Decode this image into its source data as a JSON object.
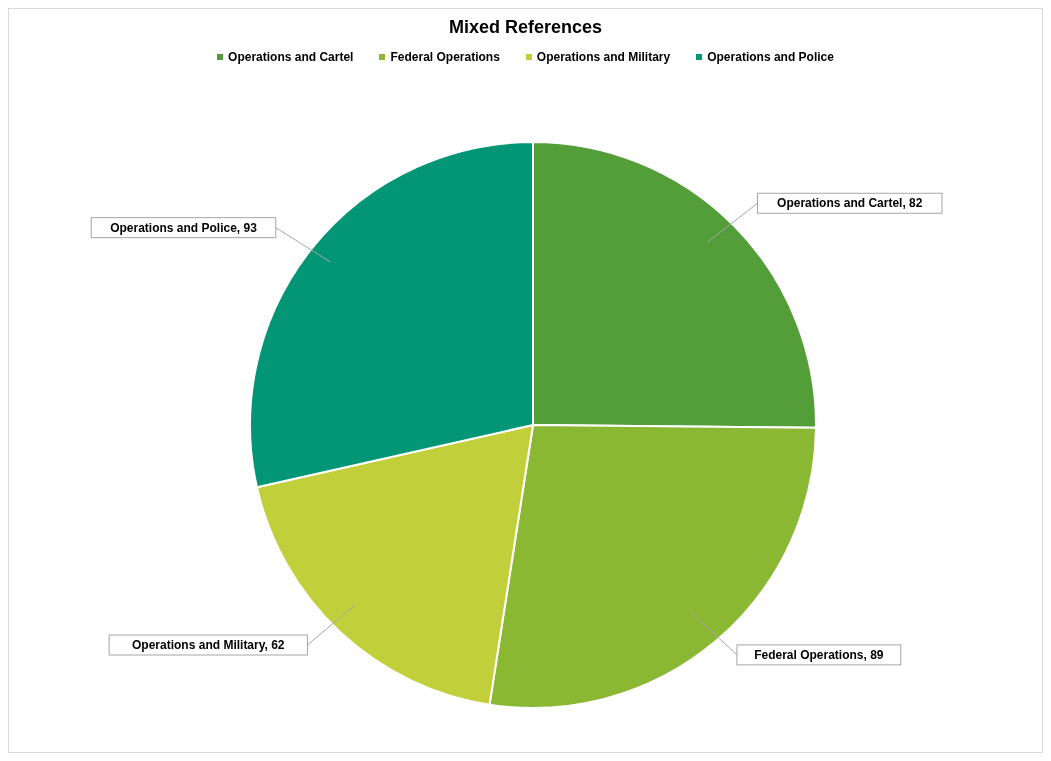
{
  "chart_data": {
    "type": "pie",
    "title": "Mixed References",
    "categories": [
      "Operations and Cartel",
      "Federal Operations",
      "Operations and Military",
      "Operations and Police"
    ],
    "values": [
      82,
      89,
      62,
      93
    ],
    "colors": [
      "#549e39",
      "#8ab833",
      "#c0cf3a",
      "#029676"
    ],
    "value_labels": [
      "Operations and Cartel, 82",
      "Federal Operations, 89",
      "Operations and Military, 62",
      "Operations and Police, 93"
    ],
    "legend": "top"
  }
}
